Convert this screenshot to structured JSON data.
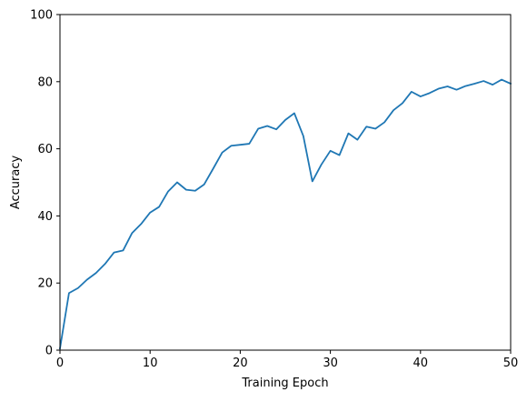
{
  "chart_data": {
    "type": "line",
    "title": "",
    "xlabel": "Training Epoch",
    "ylabel": "Accuracy",
    "xlim": [
      0,
      50
    ],
    "ylim": [
      0,
      100
    ],
    "xticks": [
      0,
      10,
      20,
      30,
      40,
      50
    ],
    "yticks": [
      0,
      20,
      40,
      60,
      80,
      100
    ],
    "grid": false,
    "series": [
      {
        "color": "#1f77b4",
        "x": [
          0,
          1,
          2,
          3,
          4,
          5,
          6,
          7,
          8,
          9,
          10,
          11,
          12,
          13,
          14,
          15,
          16,
          17,
          18,
          19,
          20,
          21,
          22,
          23,
          24,
          25,
          26,
          27,
          28,
          29,
          30,
          31,
          32,
          33,
          34,
          35,
          36,
          37,
          38,
          39,
          40,
          41,
          42,
          43,
          44,
          45,
          46,
          47,
          48,
          49,
          50
        ],
        "values": [
          0.5,
          17.0,
          18.5,
          21.0,
          23.0,
          25.7,
          29.1,
          29.7,
          34.9,
          37.6,
          41.0,
          42.7,
          47.3,
          50.0,
          47.8,
          47.5,
          49.4,
          54.1,
          58.9,
          60.9,
          61.2,
          61.5,
          66.0,
          66.8,
          65.8,
          68.6,
          70.6,
          63.8,
          50.3,
          55.3,
          59.4,
          58.1,
          64.6,
          62.7,
          66.6,
          66.0,
          67.9,
          71.5,
          73.6,
          77.0,
          75.6,
          76.6,
          77.9,
          78.6,
          77.6,
          78.7,
          79.4,
          80.2,
          79.1,
          80.6,
          79.4
        ]
      }
    ]
  }
}
